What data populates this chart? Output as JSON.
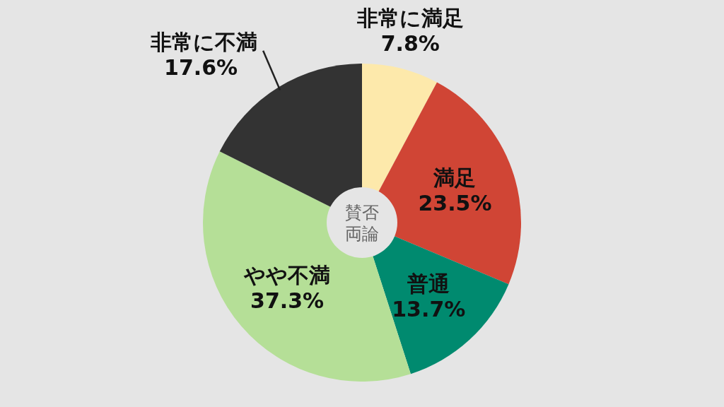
{
  "chart_data": {
    "type": "donut",
    "categories": [
      "非常に満足",
      "満足",
      "普通",
      "やや不満",
      "非常に不満"
    ],
    "values": [
      7.8,
      23.5,
      13.7,
      37.3,
      17.6
    ],
    "colors": [
      "#fde9ab",
      "#d04535",
      "#008a6f",
      "#b5df97",
      "#333333"
    ],
    "value_labels": [
      "7.8%",
      "23.5%",
      "13.7%",
      "37.3%",
      "17.6%"
    ],
    "annotations": [
      "賛否両論"
    ]
  }
}
